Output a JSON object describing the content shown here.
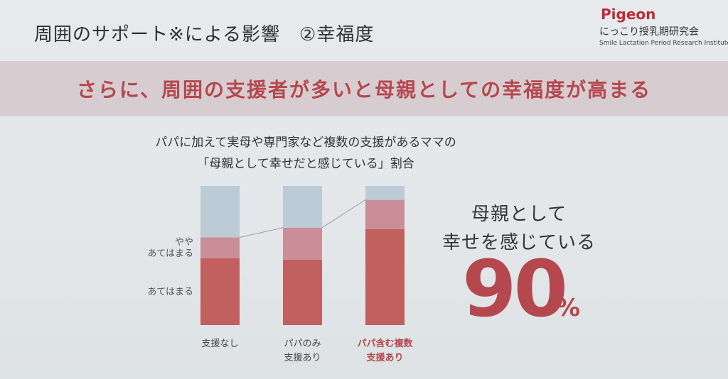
{
  "header": {
    "title": "周囲のサポート※による影響　②幸福度",
    "brand": "Pigeon",
    "institute": "にっこり授乳期研究会",
    "institute_en": "Smile Lactation Period Research Institute"
  },
  "banner": {
    "text": "さらに、周囲の支援者が多いと母親としての幸福度が高まる"
  },
  "subtitle": {
    "line1": "パパに加えて実母や専門家など複数の支援があるママの",
    "line2": "「母親として幸せだと感じている」割合"
  },
  "callout": {
    "line1": "母親として",
    "line2": "幸せを感じている",
    "value": "90",
    "unit": "%"
  },
  "colors": {
    "accent": "#b5484f",
    "bar_strong": "#c1605e",
    "bar_some": "#c98e98",
    "bar_rest": "#bccbd5"
  },
  "chart_data": {
    "type": "bar",
    "stacked": true,
    "categories": [
      [
        "支援なし"
      ],
      [
        "パパのみ",
        "支援あり"
      ],
      [
        "パパ含む複数",
        "支援あり"
      ]
    ],
    "highlight_category": 2,
    "ylim": [
      0,
      100
    ],
    "series": [
      {
        "name": "あてはまる",
        "values": [
          48,
          47,
          69
        ],
        "color": "#c1605e"
      },
      {
        "name": "やや\nあてはまる",
        "values": [
          15,
          23,
          21
        ],
        "color": "#c98e98"
      },
      {
        "name": "",
        "values": [
          37,
          30,
          10
        ],
        "color": "#bccbd5"
      }
    ],
    "connector": "top of combined series",
    "legend_labels": [
      {
        "lines": [
          "やや",
          "あてはまる"
        ],
        "series": 1
      },
      {
        "lines": [
          "あてはまる"
        ],
        "series": 0
      }
    ]
  },
  "footnote": {
    "text": ""
  }
}
